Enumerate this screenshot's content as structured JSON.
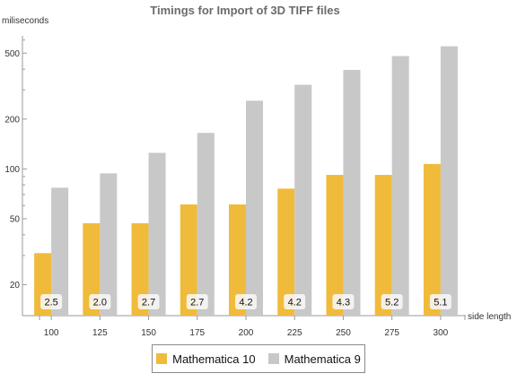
{
  "chart_data": {
    "type": "bar",
    "title": "Timings for Import of 3D TIFF files",
    "ylabel": "miliseconds",
    "xlabel": "side length",
    "yscale": "log",
    "ylim": [
      13,
      620
    ],
    "yticks": [
      20,
      50,
      100,
      200,
      500
    ],
    "categories": [
      "100",
      "125",
      "150",
      "175",
      "200",
      "225",
      "250",
      "275",
      "300"
    ],
    "series": [
      {
        "name": "Mathematica 10",
        "color": "#f0bb3a",
        "values": [
          31,
          47,
          47,
          61,
          61,
          76,
          92,
          92,
          107
        ]
      },
      {
        "name": "Mathematica 9",
        "color": "#c8c8c8",
        "values": [
          77,
          94,
          125,
          165,
          258,
          322,
          396,
          480,
          550
        ]
      }
    ],
    "annotations": [
      "2.5",
      "2.0",
      "2.7",
      "2.7",
      "4.2",
      "4.2",
      "4.3",
      "5.2",
      "5.1"
    ],
    "legend_position": "bottom",
    "grid": false
  }
}
